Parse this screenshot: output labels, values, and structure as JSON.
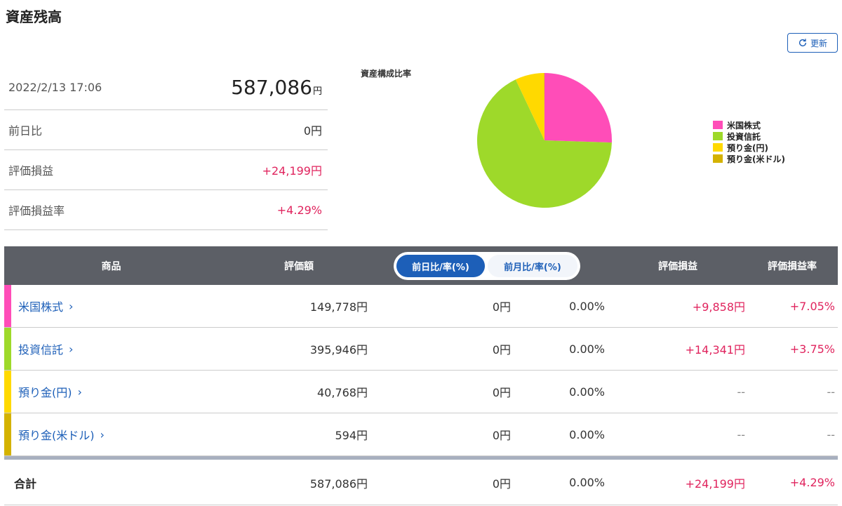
{
  "header": {
    "title": "資産残高",
    "refresh_label": "更新"
  },
  "summary": {
    "datetime": "2022/2/13 17:06",
    "total_amount": "587,086",
    "total_unit": "円",
    "rows": [
      {
        "label": "前日比",
        "value": "0円"
      },
      {
        "label": "評価損益",
        "value": "+24,199円"
      },
      {
        "label": "評価損益率",
        "value": "+4.29%"
      }
    ]
  },
  "chart_data": {
    "type": "pie",
    "title": "資産構成比率",
    "categories": [
      "米国株式",
      "投資信託",
      "預り金(円)",
      "預り金(米ドル)"
    ],
    "values": [
      149778,
      395946,
      40768,
      594
    ],
    "colors": [
      "#ff4db8",
      "#9ed92a",
      "#ffd900",
      "#d4b200"
    ],
    "legend_position": "right"
  },
  "table": {
    "headers": {
      "product": "商品",
      "valuation": "評価額",
      "toggle_day": "前日比/率(%)",
      "toggle_month": "前月比/率(%)",
      "pl": "評価損益",
      "pl_rate": "評価損益率"
    },
    "rows": [
      {
        "name": "米国株式",
        "color": "#ff4db8",
        "valuation": "149,778円",
        "change": "0円",
        "change_rate": "0.00%",
        "pl": "+9,858円",
        "pl_rate": "+7.05%"
      },
      {
        "name": "投資信託",
        "color": "#9ed92a",
        "valuation": "395,946円",
        "change": "0円",
        "change_rate": "0.00%",
        "pl": "+14,341円",
        "pl_rate": "+3.75%"
      },
      {
        "name": "預り金(円)",
        "color": "#ffd900",
        "valuation": "40,768円",
        "change": "0円",
        "change_rate": "0.00%",
        "pl": "--",
        "pl_rate": "--"
      },
      {
        "name": "預り金(米ドル)",
        "color": "#d4b200",
        "valuation": "594円",
        "change": "0円",
        "change_rate": "0.00%",
        "pl": "--",
        "pl_rate": "--"
      }
    ],
    "total": {
      "label": "合計",
      "valuation": "587,086円",
      "change": "0円",
      "change_rate": "0.00%",
      "pl": "+24,199円",
      "pl_rate": "+4.29%"
    }
  }
}
